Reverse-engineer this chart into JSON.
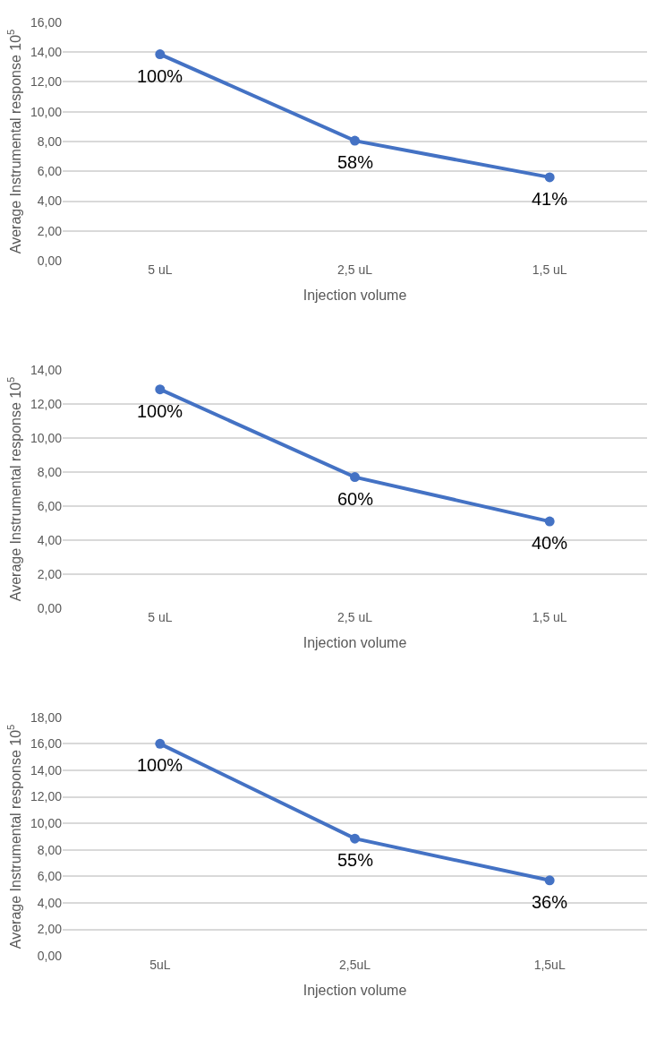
{
  "chart_data": [
    {
      "type": "line",
      "categories": [
        "5 uL",
        "2,5 uL",
        "1,5 uL"
      ],
      "xlabel": "Injection volume",
      "ylabel": "Average Instrumental response 10$^{5}$",
      "series": [
        {
          "color": "#4472c4",
          "values": [
            13.85,
            8.05,
            5.6
          ]
        }
      ],
      "annotations": [
        {
          "text": "100%",
          "x": "5 uL",
          "y": 13.85
        },
        {
          "text": "58%",
          "x": "2,5 uL",
          "y": 8.05
        },
        {
          "text": "41%",
          "x": "1,5 uL",
          "y": 5.6
        }
      ],
      "ylim": [
        0,
        16
      ],
      "yticks": [
        {
          "value": 0,
          "label": "0,00"
        },
        {
          "value": 2,
          "label": "2,00"
        },
        {
          "value": 4,
          "label": "4,00"
        },
        {
          "value": 6,
          "label": "6,00"
        },
        {
          "value": 8,
          "label": "8,00"
        },
        {
          "value": 10,
          "label": "10,00"
        },
        {
          "value": 12,
          "label": "12,00"
        },
        {
          "value": 14,
          "label": "14,00"
        },
        {
          "value": 16,
          "label": "16,00"
        }
      ],
      "grid": "y",
      "marker": "circle",
      "line_style": "solid"
    },
    {
      "type": "line",
      "categories": [
        "5 uL",
        "2,5 uL",
        "1,5 uL"
      ],
      "xlabel": "Injection volume",
      "ylabel": "Average Instrumental response 10$^{5}$",
      "series": [
        {
          "color": "#4472c4",
          "values": [
            12.85,
            7.7,
            5.1
          ]
        }
      ],
      "annotations": [
        {
          "text": "100%",
          "x": "5 uL",
          "y": 12.85
        },
        {
          "text": "60%",
          "x": "2,5 uL",
          "y": 7.7
        },
        {
          "text": "40%",
          "x": "1,5 uL",
          "y": 5.1
        }
      ],
      "ylim": [
        0,
        14
      ],
      "yticks": [
        {
          "value": 0,
          "label": "0,00"
        },
        {
          "value": 2,
          "label": "2,00"
        },
        {
          "value": 4,
          "label": "4,00"
        },
        {
          "value": 6,
          "label": "6,00"
        },
        {
          "value": 8,
          "label": "8,00"
        },
        {
          "value": 10,
          "label": "10,00"
        },
        {
          "value": 12,
          "label": "12,00"
        },
        {
          "value": 14,
          "label": "14,00"
        }
      ],
      "grid": "y",
      "marker": "circle",
      "line_style": "solid"
    },
    {
      "type": "line",
      "categories": [
        "5uL",
        "2,5uL",
        "1,5uL"
      ],
      "xlabel": "Injection volume",
      "ylabel": "Average Instrumental response 10$^{5}$",
      "series": [
        {
          "color": "#4472c4",
          "values": [
            16.0,
            8.85,
            5.7
          ]
        }
      ],
      "annotations": [
        {
          "text": "100%",
          "x": "5uL",
          "y": 16.0
        },
        {
          "text": "55%",
          "x": "2,5uL",
          "y": 8.85
        },
        {
          "text": "36%",
          "x": "1,5uL",
          "y": 5.7
        }
      ],
      "ylim": [
        0,
        18
      ],
      "yticks": [
        {
          "value": 0,
          "label": "0,00"
        },
        {
          "value": 2,
          "label": "2,00"
        },
        {
          "value": 4,
          "label": "4,00"
        },
        {
          "value": 6,
          "label": "6,00"
        },
        {
          "value": 8,
          "label": "8,00"
        },
        {
          "value": 10,
          "label": "10,00"
        },
        {
          "value": 12,
          "label": "12,00"
        },
        {
          "value": 14,
          "label": "14,00"
        },
        {
          "value": 16,
          "label": "16,00"
        },
        {
          "value": 18,
          "label": "18,00"
        }
      ],
      "grid": "y",
      "marker": "circle",
      "line_style": "solid"
    }
  ]
}
